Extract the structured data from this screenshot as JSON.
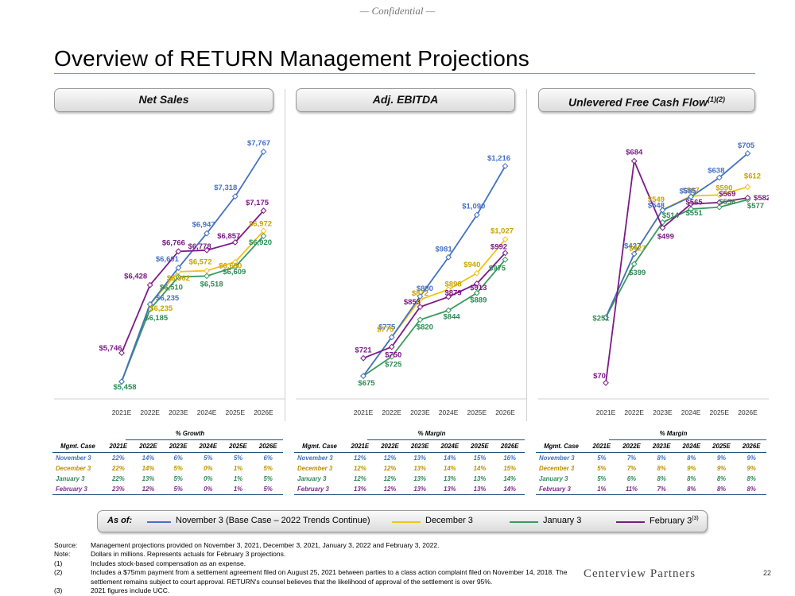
{
  "header": {
    "confidential": "— Confidential —",
    "title": "Overview of RETURN Management Projections"
  },
  "colors": {
    "nov3": "#4472c4",
    "dec3": "#f2c318",
    "jan3": "#3a9a5c",
    "feb3": "#7b1a86",
    "nov3_label": "#4472c4",
    "dec3_label": "#c9a300",
    "jan3_label": "#2e8b57",
    "feb3_label": "#7b1a86"
  },
  "panels": [
    {
      "title": "Net Sales"
    },
    {
      "title": "Adj. EBITDA"
    },
    {
      "title": "Unlevered Free Cash Flow",
      "title_sup": "(1)(2)"
    }
  ],
  "chart_data": [
    {
      "type": "line",
      "title": "Net Sales",
      "x": [
        "2021E",
        "2022E",
        "2023E",
        "2024E",
        "2025E",
        "2026E"
      ],
      "series": [
        {
          "name": "November 3",
          "values": [
            5458,
            6235,
            6601,
            6947,
            7318,
            7767
          ]
        },
        {
          "name": "December 3",
          "values": [
            5458,
            6235,
            6562,
            6572,
            6660,
            6972
          ]
        },
        {
          "name": "January 3",
          "values": [
            5458,
            6185,
            6510,
            6518,
            6609,
            6920
          ]
        },
        {
          "name": "February 3",
          "values": [
            5746,
            6428,
            6766,
            6778,
            6857,
            7175
          ]
        }
      ],
      "labels": [
        {
          "text": "$5,746",
          "series": 3,
          "i": 0
        },
        {
          "text": "$5,458",
          "series": 2,
          "i": 0
        },
        {
          "text": "$6,428",
          "series": 3,
          "i": 1
        },
        {
          "text": "$6,235",
          "series": 0,
          "i": 1
        },
        {
          "text": "$6,235",
          "series": 1,
          "i": 1
        },
        {
          "text": "$6,185",
          "series": 2,
          "i": 1
        },
        {
          "text": "$6,601",
          "series": 0,
          "i": 2
        },
        {
          "text": "$6,766",
          "series": 3,
          "i": 2
        },
        {
          "text": "$6,562",
          "series": 1,
          "i": 2
        },
        {
          "text": "$6,510",
          "series": 2,
          "i": 2
        },
        {
          "text": "$6,947",
          "series": 0,
          "i": 3
        },
        {
          "text": "$6,778",
          "series": 3,
          "i": 3
        },
        {
          "text": "$6,572",
          "series": 1,
          "i": 3
        },
        {
          "text": "$6,518",
          "series": 2,
          "i": 3
        },
        {
          "text": "$7,318",
          "series": 0,
          "i": 4
        },
        {
          "text": "$6,857",
          "series": 3,
          "i": 4
        },
        {
          "text": "$6,660",
          "series": 1,
          "i": 4
        },
        {
          "text": "$6,609",
          "series": 2,
          "i": 4
        },
        {
          "text": "$7,767",
          "series": 0,
          "i": 5
        },
        {
          "text": "$7,175",
          "series": 3,
          "i": 5
        },
        {
          "text": "$6,972",
          "series": 1,
          "i": 5
        },
        {
          "text": "$6,920",
          "series": 2,
          "i": 5
        }
      ],
      "ylim": [
        5300,
        7950
      ]
    },
    {
      "type": "line",
      "title": "Adj. EBITDA",
      "x": [
        "2021E",
        "2022E",
        "2023E",
        "2024E",
        "2025E",
        "2026E"
      ],
      "series": [
        {
          "name": "November 3",
          "values": [
            675,
            775,
            880,
            981,
            1090,
            1216
          ]
        },
        {
          "name": "December 3",
          "values": [
            675,
            775,
            872,
            898,
            940,
            1027
          ]
        },
        {
          "name": "January 3",
          "values": [
            675,
            725,
            820,
            844,
            889,
            975
          ]
        },
        {
          "name": "February 3",
          "values": [
            721,
            750,
            853,
            879,
            913,
            992
          ]
        }
      ],
      "labels": [
        {
          "text": "$721",
          "series": 3,
          "i": 0
        },
        {
          "text": "$675",
          "series": 2,
          "i": 0
        },
        {
          "text": "$775",
          "series": 0,
          "i": 1
        },
        {
          "text": "$775",
          "series": 1,
          "i": 1
        },
        {
          "text": "$750",
          "series": 3,
          "i": 1
        },
        {
          "text": "$725",
          "series": 2,
          "i": 1
        },
        {
          "text": "$880",
          "series": 0,
          "i": 2
        },
        {
          "text": "$872",
          "series": 1,
          "i": 2
        },
        {
          "text": "$853",
          "series": 3,
          "i": 2
        },
        {
          "text": "$820",
          "series": 2,
          "i": 2
        },
        {
          "text": "$981",
          "series": 0,
          "i": 3
        },
        {
          "text": "$898",
          "series": 1,
          "i": 3
        },
        {
          "text": "$879",
          "series": 3,
          "i": 3
        },
        {
          "text": "$844",
          "series": 2,
          "i": 3
        },
        {
          "text": "$1,090",
          "series": 0,
          "i": 4
        },
        {
          "text": "$940",
          "series": 1,
          "i": 4
        },
        {
          "text": "$913",
          "series": 3,
          "i": 4
        },
        {
          "text": "$889",
          "series": 2,
          "i": 4
        },
        {
          "text": "$1,216",
          "series": 0,
          "i": 5
        },
        {
          "text": "$1,027",
          "series": 1,
          "i": 5
        },
        {
          "text": "$992",
          "series": 3,
          "i": 5
        },
        {
          "text": "$975",
          "series": 2,
          "i": 5
        }
      ],
      "ylim": [
        620,
        1300
      ]
    },
    {
      "type": "line",
      "title": "Unlevered Free Cash Flow",
      "x": [
        "2021E",
        "2022E",
        "2023E",
        "2024E",
        "2025E",
        "2026E"
      ],
      "series": [
        {
          "name": "November 3",
          "values": [
            251,
            427,
            548,
            585,
            638,
            705
          ]
        },
        {
          "name": "December 3",
          "values": [
            251,
            427,
            549,
            587,
            590,
            612
          ]
        },
        {
          "name": "January 3",
          "values": [
            251,
            399,
            514,
            551,
            556,
            577
          ]
        },
        {
          "name": "February 3",
          "values": [
            70,
            684,
            499,
            565,
            569,
            582
          ]
        }
      ],
      "labels": [
        {
          "text": "$251",
          "series": 2,
          "i": 0
        },
        {
          "text": "$70",
          "series": 3,
          "i": 0
        },
        {
          "text": "$684",
          "series": 3,
          "i": 1
        },
        {
          "text": "$427",
          "series": 0,
          "i": 1
        },
        {
          "text": "$427",
          "series": 1,
          "i": 1
        },
        {
          "text": "$399",
          "series": 2,
          "i": 1
        },
        {
          "text": "$549",
          "series": 1,
          "i": 2
        },
        {
          "text": "$548",
          "series": 0,
          "i": 2
        },
        {
          "text": "$514",
          "series": 2,
          "i": 2
        },
        {
          "text": "$499",
          "series": 3,
          "i": 2
        },
        {
          "text": "$587",
          "series": 1,
          "i": 3
        },
        {
          "text": "$585",
          "series": 0,
          "i": 3
        },
        {
          "text": "$565",
          "series": 3,
          "i": 3
        },
        {
          "text": "$551",
          "series": 2,
          "i": 3
        },
        {
          "text": "$638",
          "series": 0,
          "i": 4
        },
        {
          "text": "$590",
          "series": 1,
          "i": 4
        },
        {
          "text": "$569",
          "series": 3,
          "i": 4
        },
        {
          "text": "$556",
          "series": 2,
          "i": 4
        },
        {
          "text": "$705",
          "series": 0,
          "i": 5
        },
        {
          "text": "$612",
          "series": 1,
          "i": 5
        },
        {
          "text": "$582",
          "series": 3,
          "i": 5
        },
        {
          "text": "$577",
          "series": 2,
          "i": 5
        }
      ],
      "ylim": [
        30,
        760
      ]
    }
  ],
  "tables": [
    {
      "title": "% Growth",
      "columns": [
        "Mgmt. Case",
        "2021E",
        "2022E",
        "2023E",
        "2024E",
        "2025E",
        "2026E"
      ],
      "rows": [
        [
          "November 3",
          "22%",
          "14%",
          "6%",
          "5%",
          "5%",
          "6%"
        ],
        [
          "December 3",
          "22%",
          "14%",
          "5%",
          "0%",
          "1%",
          "5%"
        ],
        [
          "January 3",
          "22%",
          "13%",
          "5%",
          "0%",
          "1%",
          "5%"
        ],
        [
          "February 3",
          "23%",
          "12%",
          "5%",
          "0%",
          "1%",
          "5%"
        ]
      ]
    },
    {
      "title": "% Margin",
      "columns": [
        "Mgmt. Case",
        "2021E",
        "2022E",
        "2023E",
        "2024E",
        "2025E",
        "2026E"
      ],
      "rows": [
        [
          "November 3",
          "12%",
          "12%",
          "13%",
          "14%",
          "15%",
          "16%"
        ],
        [
          "December 3",
          "12%",
          "12%",
          "13%",
          "14%",
          "14%",
          "15%"
        ],
        [
          "January 3",
          "12%",
          "12%",
          "13%",
          "13%",
          "13%",
          "14%"
        ],
        [
          "February 3",
          "13%",
          "12%",
          "13%",
          "13%",
          "13%",
          "14%"
        ]
      ]
    },
    {
      "title": "% Margin",
      "columns": [
        "Mgmt. Case",
        "2021E",
        "2022E",
        "2023E",
        "2024E",
        "2025E",
        "2026E"
      ],
      "rows": [
        [
          "November 3",
          "5%",
          "7%",
          "8%",
          "8%",
          "9%",
          "9%"
        ],
        [
          "December 3",
          "5%",
          "7%",
          "8%",
          "9%",
          "9%",
          "9%"
        ],
        [
          "January 3",
          "5%",
          "6%",
          "8%",
          "8%",
          "8%",
          "8%"
        ],
        [
          "February 3",
          "1%",
          "11%",
          "7%",
          "8%",
          "8%",
          "8%"
        ]
      ]
    }
  ],
  "legend": {
    "as_of": "As of:",
    "items": [
      {
        "label": "November 3 (Base Case – 2022 Trends Continue)"
      },
      {
        "label": "December 3"
      },
      {
        "label": "January 3"
      },
      {
        "label": "February 3",
        "sup": "(3)"
      }
    ]
  },
  "notes": [
    {
      "label": "Source:",
      "text": "Management projections provided on November 3, 2021, December 3, 2021, January 3, 2022 and February 3, 2022."
    },
    {
      "label": "Note:",
      "text": "Dollars in millions. Represents actuals for February 3 projections."
    },
    {
      "label": "(1)",
      "text": "Includes stock-based compensation as an expense."
    },
    {
      "label": "(2)",
      "text": "Includes a $75mm payment from a settlement agreement filed on August 25, 2021 between parties to a class action complaint filed on November 14, 2018. The settlement remains subject to court approval. RETURN's counsel believes that the likelihood of approval of the settlement is over 95%."
    },
    {
      "label": "(3)",
      "text": "2021 figures include UCC."
    }
  ],
  "footer": {
    "logo": "Centerview Partners",
    "page_number": "22"
  }
}
